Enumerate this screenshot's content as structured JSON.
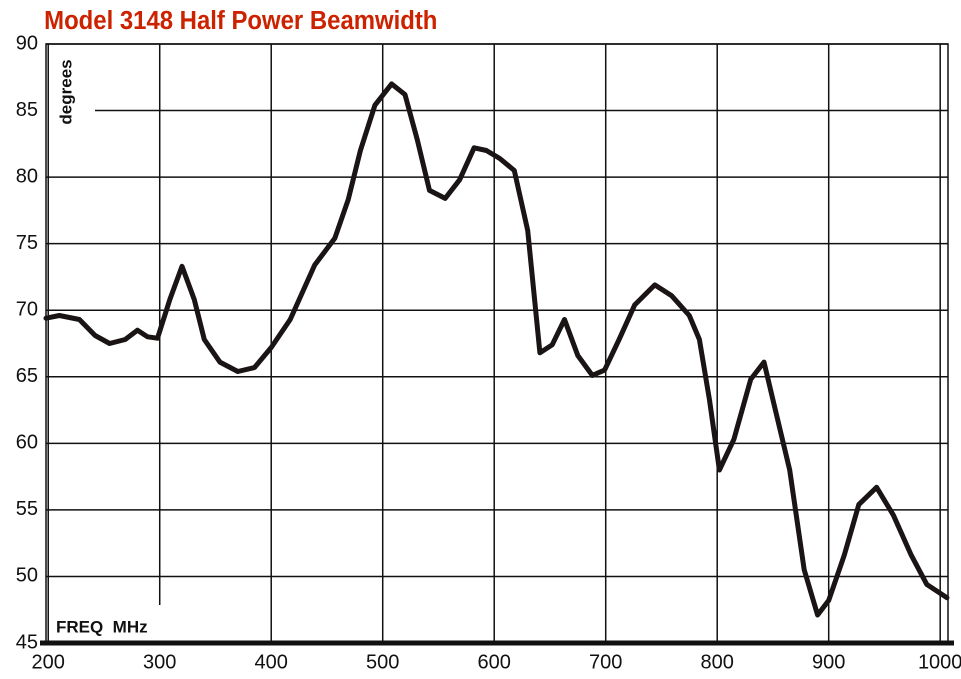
{
  "chart_data": {
    "type": "line",
    "title": "Model 3148 Half Power Beamwidth",
    "y_label": "degrees",
    "x_label": "FREQ  MHz",
    "x": [
      198,
      210,
      228,
      242,
      255,
      269,
      280,
      289,
      298,
      309,
      320,
      331,
      340,
      354,
      370,
      385,
      400,
      417,
      439,
      457,
      469,
      480,
      493,
      508,
      520,
      531,
      542,
      556,
      569,
      582,
      593,
      605,
      618,
      630,
      641,
      652,
      663,
      675,
      688,
      699,
      712,
      726,
      744,
      759,
      775,
      784,
      793,
      802,
      815,
      830,
      842,
      851,
      865,
      878,
      890,
      900,
      914,
      927,
      943,
      958,
      974,
      988,
      1006
    ],
    "series": [
      {
        "name": "beamwidth",
        "color": "#1a1414",
        "values": [
          69.4,
          69.6,
          69.3,
          68.1,
          67.5,
          67.8,
          68.5,
          68.0,
          67.9,
          70.8,
          73.3,
          70.8,
          67.8,
          66.1,
          65.4,
          65.7,
          67.2,
          69.3,
          73.4,
          75.4,
          78.3,
          82.0,
          85.4,
          87.0,
          86.2,
          82.8,
          79.0,
          78.4,
          79.8,
          82.2,
          82.0,
          81.4,
          80.5,
          76.0,
          66.8,
          67.4,
          69.3,
          66.6,
          65.1,
          65.5,
          67.8,
          70.4,
          71.9,
          71.1,
          69.6,
          67.8,
          63.3,
          58.0,
          60.3,
          64.8,
          66.1,
          62.9,
          58.0,
          50.5,
          47.1,
          48.2,
          51.6,
          55.4,
          56.7,
          54.6,
          51.6,
          49.4,
          48.4
        ]
      }
    ],
    "xlim": [
      198,
      1007
    ],
    "ylim": [
      45,
      90
    ],
    "xticks": [
      200,
      300,
      400,
      500,
      600,
      700,
      800,
      900,
      1000
    ],
    "yticks": [
      45,
      50,
      55,
      60,
      65,
      70,
      75,
      80,
      85,
      90
    ],
    "grid": true
  }
}
